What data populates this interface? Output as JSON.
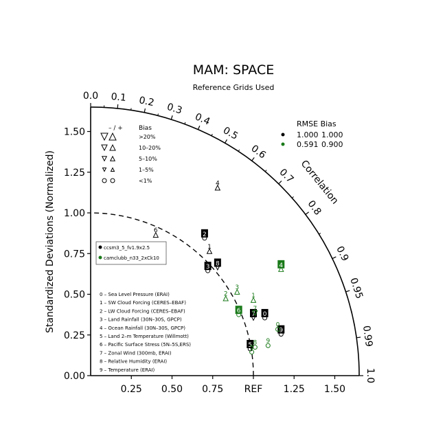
{
  "chart_data": {
    "type": "scatter",
    "title": "MAM: SPACE",
    "subtitle": "Reference Grids Used",
    "ylabel": "Standardized Deviations (Normalized)",
    "correlation_label": "Correlation",
    "ref_label": "REF",
    "std_range": [
      0,
      1.65
    ],
    "x_ticks": [
      "0.25",
      "0.50",
      "0.75",
      "REF",
      "1.25",
      "1.50"
    ],
    "x_tick_values": [
      0.25,
      0.5,
      0.75,
      1.0,
      1.25,
      1.5
    ],
    "y_ticks": [
      "0.00",
      "0.25",
      "0.50",
      "0.75",
      "1.00",
      "1.25",
      "1.50"
    ],
    "y_tick_values": [
      0,
      0.25,
      0.5,
      0.75,
      1.0,
      1.25,
      1.5
    ],
    "correlation_ticks": [
      {
        "label": "0.0",
        "value": 0.0
      },
      {
        "label": "0.1",
        "value": 0.1
      },
      {
        "label": "0.2",
        "value": 0.2
      },
      {
        "label": "0.3",
        "value": 0.3
      },
      {
        "label": "0.4",
        "value": 0.4
      },
      {
        "label": "0.5",
        "value": 0.5
      },
      {
        "label": "0.6",
        "value": 0.6
      },
      {
        "label": "0.7",
        "value": 0.7
      },
      {
        "label": "0.8",
        "value": 0.8
      },
      {
        "label": "0.9",
        "value": 0.9
      },
      {
        "label": "0.95",
        "value": 0.95
      },
      {
        "label": "0.99",
        "value": 0.99
      },
      {
        "label": "1.0",
        "value": 1.0
      }
    ],
    "bias_legend": {
      "header_sign": "– / +",
      "header_bias": "Bias",
      "rows": [
        {
          "label": ">20%",
          "size": 10
        },
        {
          "label": "10–20%",
          "size": 8
        },
        {
          "label": "5–10%",
          "size": 6.5
        },
        {
          "label": "1–5%",
          "size": 5
        },
        {
          "label": "<1%",
          "size": 0
        }
      ]
    },
    "rmse_legend": {
      "header": "RMSE  Bias",
      "rows": [
        {
          "rmse": "1.000",
          "bias": "1.000",
          "color": "#000000"
        },
        {
          "rmse": "0.591",
          "bias": "0.900",
          "color": "#1a7a1a"
        }
      ]
    },
    "series": [
      {
        "name": "ccsm3_5_fv1.9x2.5",
        "color": "#000000",
        "points": [
          {
            "id": "0",
            "x": 1.07,
            "y": 0.38,
            "marker": "circle"
          },
          {
            "id": "1",
            "x": 0.73,
            "y": 0.79,
            "marker": "up"
          },
          {
            "id": "2",
            "x": 0.7,
            "y": 0.87,
            "marker": "circle"
          },
          {
            "id": "3",
            "x": 0.72,
            "y": 0.67,
            "marker": "circle"
          },
          {
            "id": "4",
            "x": 0.78,
            "y": 1.18,
            "marker": "up"
          },
          {
            "id": "5",
            "x": 0.98,
            "y": 0.19,
            "marker": "circle"
          },
          {
            "id": "6",
            "x": 0.4,
            "y": 0.89,
            "marker": "up"
          },
          {
            "id": "7",
            "x": 1.0,
            "y": 0.38,
            "marker": "down"
          },
          {
            "id": "8",
            "x": 0.78,
            "y": 0.69,
            "marker": "down"
          },
          {
            "id": "9",
            "x": 1.17,
            "y": 0.28,
            "marker": "circle"
          }
        ]
      },
      {
        "name": "camclubb_n33_2xCk10",
        "color": "#1a7a1a",
        "points": [
          {
            "id": "0",
            "x": 1.15,
            "y": 0.31,
            "marker": "circle"
          },
          {
            "id": "1",
            "x": 1.0,
            "y": 0.49,
            "marker": "up"
          },
          {
            "id": "2",
            "x": 0.83,
            "y": 0.5,
            "marker": "up"
          },
          {
            "id": "3",
            "x": 0.9,
            "y": 0.54,
            "marker": "up"
          },
          {
            "id": "4",
            "x": 1.17,
            "y": 0.68,
            "marker": "up"
          },
          {
            "id": "5",
            "x": 0.99,
            "y": 0.17,
            "marker": "circle"
          },
          {
            "id": "6",
            "x": 0.91,
            "y": 0.4,
            "marker": "circle"
          },
          {
            "id": "7",
            "x": 1.01,
            "y": 0.41,
            "marker": "down"
          },
          {
            "id": "8",
            "x": 1.01,
            "y": 0.2,
            "marker": "circle"
          },
          {
            "id": "9",
            "x": 1.09,
            "y": 0.21,
            "marker": "circle"
          }
        ]
      }
    ],
    "variables": [
      "0 – Sea Level Pressure (ERAI)",
      "1 – SW Cloud Forcing (CERES–EBAF)",
      "2 – LW Cloud Forcing (CERES–EBAF)",
      "3 – Land Rainfall (30N–30S, GPCP)",
      "4 – Ocean Rainfall (30N–30S, GPCP)",
      "5 – Land 2–m Temperature (Willmott)",
      "6 – Pacific Surface Stress (5N–5S,ERS)",
      "7 – Zonal Wind (300mb, ERAI)",
      "8 – Relative Humidity (ERAI)",
      "9 – Temperature (ERAI)"
    ]
  }
}
